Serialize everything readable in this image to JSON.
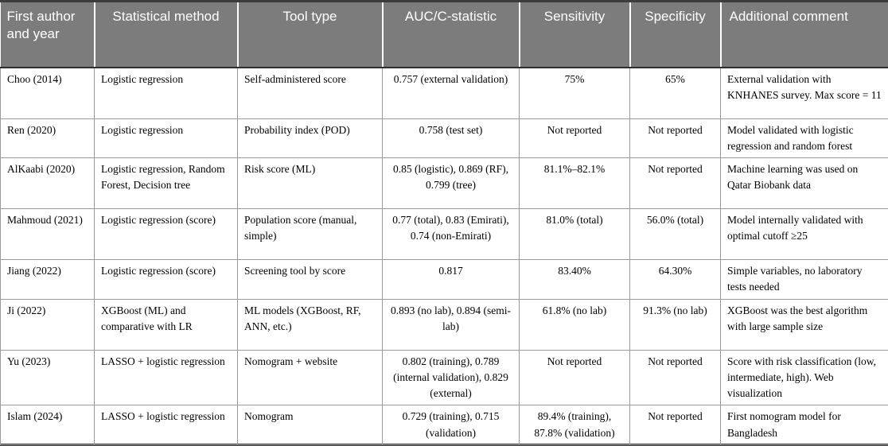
{
  "table": {
    "columns": [
      "First author and year",
      "Statistical method",
      "Tool type",
      "AUC/C-statistic",
      "Sensitivity",
      "Specificity",
      "Additional comment"
    ],
    "rows": [
      [
        "Choo (2014)",
        "Logistic regression",
        "Self-administered score",
        "0.757 (external validation)",
        "75%",
        "65%",
        "External validation with KNHANES survey. Max score = 11"
      ],
      [
        "Ren (2020)",
        "Logistic regression",
        "Probability index (POD)",
        "0.758 (test set)",
        "Not reported",
        "Not reported",
        "Model validated with logistic regression and random forest"
      ],
      [
        "AlKaabi (2020)",
        "Logistic regression, Random Forest, Decision tree",
        "Risk score (ML)",
        "0.85 (logistic), 0.869 (RF), 0.799 (tree)",
        "81.1%–82.1%",
        "Not reported",
        "Machine learning was used on Qatar Biobank data"
      ],
      [
        "Mahmoud (2021)",
        "Logistic regression (score)",
        "Population score (manual, simple)",
        "0.77 (total), 0.83 (Emirati), 0.74 (non-Emirati)",
        "81.0% (total)",
        "56.0% (total)",
        "Model internally validated with optimal cutoff ≥25"
      ],
      [
        "Jiang (2022)",
        "Logistic regression (score)",
        "Screening tool by score",
        "0.817",
        "83.40%",
        "64.30%",
        "Simple variables, no laboratory tests needed"
      ],
      [
        "Ji (2022)",
        "XGBoost (ML) and comparative with LR",
        "ML models (XGBoost, RF, ANN, etc.)",
        "0.893 (no lab), 0.894 (semi-lab)",
        "61.8% (no lab)",
        "91.3% (no lab)",
        "XGBoost was the best algorithm with large sample size"
      ],
      [
        "Yu (2023)",
        "LASSO + logistic regression",
        "Nomogram + website",
        "0.802 (training), 0.789 (internal validation), 0.829 (external)",
        "Not reported",
        "Not reported",
        "Score with risk classification (low, intermediate, high). Web visualization"
      ],
      [
        "Islam (2024)",
        "LASSO + logistic regression",
        "Nomogram",
        "0.729 (training), 0.715 (validation)",
        "89.4% (training), 87.8% (validation)",
        "Not reported",
        "First nomogram model for Bangladesh"
      ]
    ]
  },
  "colors": {
    "header_bg": "#7c7c7c",
    "header_text": "#ffffff",
    "grid_line": "#9b9b9b",
    "frame_line": "#3c3c3c"
  }
}
